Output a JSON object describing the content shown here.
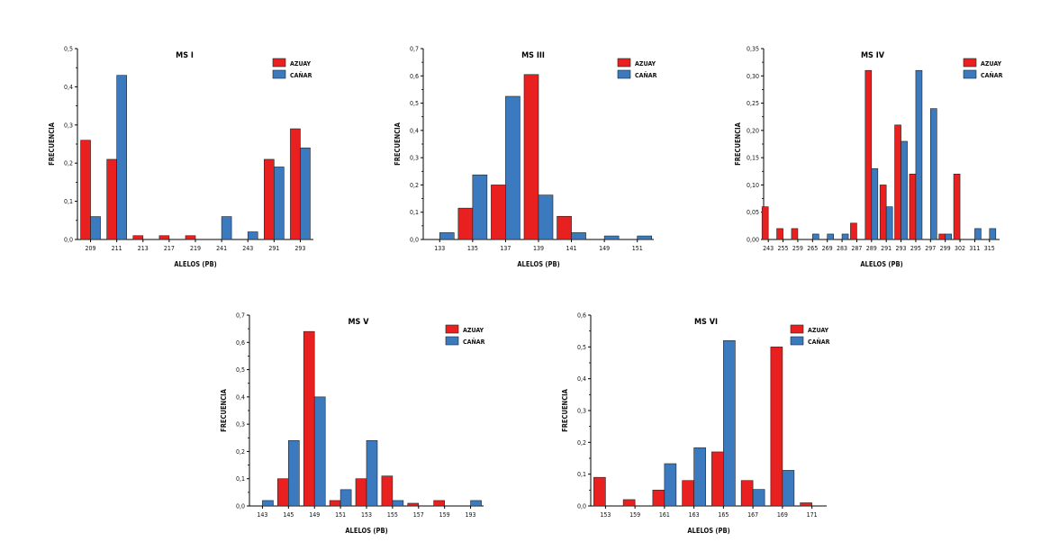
{
  "colors": {
    "azuay": "#e8201f",
    "canar": "#3b7abf",
    "axis": "#000000"
  },
  "chart_data": [
    {
      "type": "bar",
      "title": "MS I",
      "xlabel": "ALELOS (PB)",
      "ylabel": "FRECUENCIA",
      "ylim": [
        0,
        0.5
      ],
      "yticks": [
        "0,0",
        "0,1",
        "0,2",
        "0,3",
        "0,4",
        "0,5"
      ],
      "categories": [
        "209",
        "211",
        "213",
        "217",
        "219",
        "241",
        "243",
        "291",
        "293"
      ],
      "series": [
        {
          "name": "AZUAY",
          "values": [
            0.26,
            0.21,
            0.01,
            0.01,
            0.01,
            0,
            0,
            0.21,
            0.29
          ]
        },
        {
          "name": "CAÑAR",
          "values": [
            0.06,
            0.43,
            0,
            0,
            0,
            0.06,
            0.02,
            0.19,
            0.24
          ]
        }
      ]
    },
    {
      "type": "bar",
      "title": "MS III",
      "xlabel": "ALELOS (PB)",
      "ylabel": "FRECUENCIA",
      "ylim": [
        0,
        0.7
      ],
      "yticks": [
        "0,0",
        "0,1",
        "0,2",
        "0,3",
        "0,4",
        "0,5",
        "0,6",
        "0,7"
      ],
      "categories": [
        "133",
        "135",
        "137",
        "139",
        "141",
        "149",
        "151"
      ],
      "series": [
        {
          "name": "AZUAY",
          "values": [
            0,
            0.115,
            0.2,
            0.605,
            0.085,
            0,
            0
          ]
        },
        {
          "name": "CAÑAR",
          "values": [
            0.025,
            0.237,
            0.525,
            0.163,
            0.025,
            0.013,
            0.013
          ]
        }
      ]
    },
    {
      "type": "bar",
      "title": "MS IV",
      "xlabel": "ALELOS (PB)",
      "ylabel": "FRECUENCIA",
      "ylim": [
        0,
        0.35
      ],
      "yticks": [
        "0,00",
        "0,05",
        "0,10",
        "0,15",
        "0,20",
        "0,25",
        "0,30",
        "0,35"
      ],
      "categories": [
        "243",
        "255",
        "259",
        "265",
        "269",
        "283",
        "287",
        "289",
        "291",
        "293",
        "295",
        "297",
        "299",
        "302",
        "311",
        "315"
      ],
      "series": [
        {
          "name": "AZUAY",
          "values": [
            0.06,
            0.02,
            0.02,
            0,
            0,
            0,
            0.03,
            0.31,
            0.1,
            0.21,
            0.12,
            0,
            0.01,
            0.12,
            0,
            0
          ]
        },
        {
          "name": "CAÑAR",
          "values": [
            0,
            0,
            0,
            0.01,
            0.01,
            0.01,
            0,
            0.13,
            0.06,
            0.18,
            0.31,
            0.24,
            0.01,
            0,
            0.02,
            0.02
          ]
        }
      ]
    },
    {
      "type": "bar",
      "title": "MS V",
      "xlabel": "ALELOS (PB)",
      "ylabel": "FRECUENCIA",
      "ylim": [
        0,
        0.7
      ],
      "yticks": [
        "0,0",
        "0,1",
        "0,2",
        "0,3",
        "0,4",
        "0,5",
        "0,6",
        "0,7"
      ],
      "categories": [
        "143",
        "145",
        "149",
        "151",
        "153",
        "155",
        "157",
        "159",
        "193"
      ],
      "series": [
        {
          "name": "AZUAY",
          "values": [
            0,
            0.1,
            0.64,
            0.02,
            0.1,
            0.11,
            0.01,
            0.02,
            0
          ]
        },
        {
          "name": "CAÑAR",
          "values": [
            0.02,
            0.24,
            0.4,
            0.06,
            0.24,
            0.02,
            0,
            0,
            0.02
          ]
        }
      ]
    },
    {
      "type": "bar",
      "title": "MS VI",
      "xlabel": "ALELOS (PB)",
      "ylabel": "FRECUENCIA",
      "ylim": [
        0,
        0.6
      ],
      "yticks": [
        "0,0",
        "0,1",
        "0,2",
        "0,3",
        "0,4",
        "0,5",
        "0,6"
      ],
      "categories": [
        "153",
        "159",
        "161",
        "163",
        "165",
        "167",
        "169",
        "171"
      ],
      "series": [
        {
          "name": "AZUAY",
          "values": [
            0.09,
            0.02,
            0.05,
            0.08,
            0.17,
            0.08,
            0.5,
            0.01
          ]
        },
        {
          "name": "CAÑAR",
          "values": [
            0,
            0,
            0.133,
            0.183,
            0.52,
            0.052,
            0.112,
            0
          ]
        }
      ]
    }
  ]
}
